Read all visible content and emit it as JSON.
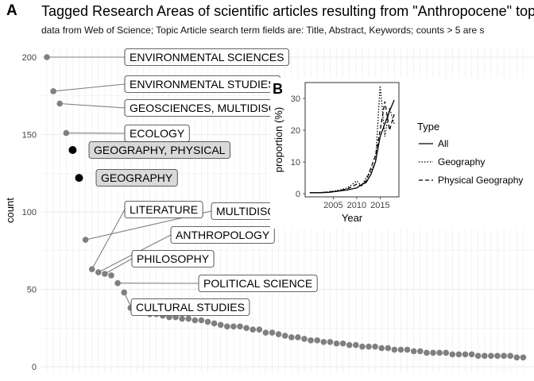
{
  "panel_a_letter": "A",
  "panel_b_letter": "B",
  "title": "Tagged Research Areas of scientific articles resulting from \"Anthropocene\" top",
  "subtitle": "data from Web of Science; Topic Article search term fields are: Title, Abstract, Keywords; counts > 5 are s",
  "colors": {
    "point": "#7f7f7f",
    "highlight": "#000000",
    "highlight_fill": "#d9d9d9",
    "grid": "#ebebeb"
  },
  "chart_data": [
    {
      "type": "scatter",
      "title": "Tagged Research Areas of scientific articles resulting from \"Anthropocene\" top",
      "subtitle": "data from Web of Science; Topic Article search term fields are: Title, Abstract, Keywords; counts > 5 are s",
      "xlabel": "",
      "ylabel": "count",
      "ylim": [
        0,
        205
      ],
      "yticks": [
        0,
        50,
        100,
        150,
        200
      ],
      "grid": true,
      "values": [
        200,
        178,
        170,
        151,
        140,
        122,
        82,
        63,
        61,
        60,
        59,
        54,
        48,
        38,
        37,
        36,
        34,
        34,
        33,
        32,
        32,
        31,
        31,
        30,
        30,
        29,
        28,
        27,
        26,
        26,
        26,
        25,
        24,
        24,
        22,
        22,
        21,
        20,
        19,
        19,
        18,
        17,
        17,
        16,
        16,
        15,
        15,
        14,
        14,
        13,
        13,
        13,
        12,
        12,
        11,
        11,
        11,
        10,
        10,
        9,
        9,
        9,
        9,
        8,
        8,
        8,
        8,
        7,
        7,
        7,
        7,
        7,
        7,
        6,
        6
      ],
      "labels": [
        {
          "index": 0,
          "text": "ENVIRONMENTAL SCIENCES",
          "highlight": false
        },
        {
          "index": 1,
          "text": "ENVIRONMENTAL STUDIES",
          "highlight": false
        },
        {
          "index": 2,
          "text": "GEOSCIENCES, MULTIDISCIPLINARY",
          "highlight": false
        },
        {
          "index": 3,
          "text": "ECOLOGY",
          "highlight": false
        },
        {
          "index": 4,
          "text": "GEOGRAPHY, PHYSICAL",
          "highlight": true
        },
        {
          "index": 5,
          "text": "GEOGRAPHY",
          "highlight": true
        },
        {
          "index": 6,
          "text": "MULTIDISCIPLINARY SCIENCES",
          "highlight": false
        },
        {
          "index": 7,
          "text": "LITERATURE",
          "highlight": false
        },
        {
          "index": 8,
          "text": "ANTHROPOLOGY",
          "highlight": false
        },
        {
          "index": 9,
          "text": "PHILOSOPHY",
          "highlight": false
        },
        {
          "index": 11,
          "text": "POLITICAL SCIENCE",
          "highlight": false
        },
        {
          "index": 12,
          "text": "CULTURAL STUDIES",
          "highlight": false
        }
      ]
    },
    {
      "type": "line",
      "xlabel": "Year",
      "ylabel": "proportion (%)",
      "xlim": [
        1999,
        2019
      ],
      "ylim": [
        -1,
        35
      ],
      "xticks": [
        2005,
        2010,
        2015
      ],
      "yticks": [
        0,
        10,
        20,
        30
      ],
      "legend_title": "Type",
      "legend_position": "right",
      "series": [
        {
          "name": "All",
          "dash": "solid",
          "x": [
            2000,
            2002,
            2004,
            2006,
            2008,
            2010,
            2011,
            2012,
            2013,
            2014,
            2015,
            2016,
            2017,
            2018
          ],
          "y": [
            0.3,
            0.3,
            0.4,
            0.8,
            1.2,
            1.8,
            2.8,
            3.5,
            6,
            10,
            18,
            22,
            26,
            29.5
          ]
        },
        {
          "name": "Geography",
          "dash": "dotted",
          "x": [
            2000,
            2002,
            2004,
            2006,
            2008,
            2010,
            2011,
            2012,
            2013,
            2014,
            2015,
            2016,
            2017,
            2018
          ],
          "y": [
            0.3,
            0.3,
            0.6,
            1,
            1.8,
            4,
            2.5,
            5,
            7,
            10,
            34,
            18,
            27,
            22
          ]
        },
        {
          "name": "Physical Geography",
          "dash": "dashed",
          "x": [
            2000,
            2002,
            2004,
            2006,
            2008,
            2010,
            2011,
            2012,
            2013,
            2014,
            2015,
            2016,
            2017,
            2018
          ],
          "y": [
            0.3,
            0.3,
            0.5,
            0.9,
            1.5,
            3,
            2.5,
            4,
            8,
            12,
            20,
            29,
            20,
            25
          ]
        }
      ]
    }
  ]
}
